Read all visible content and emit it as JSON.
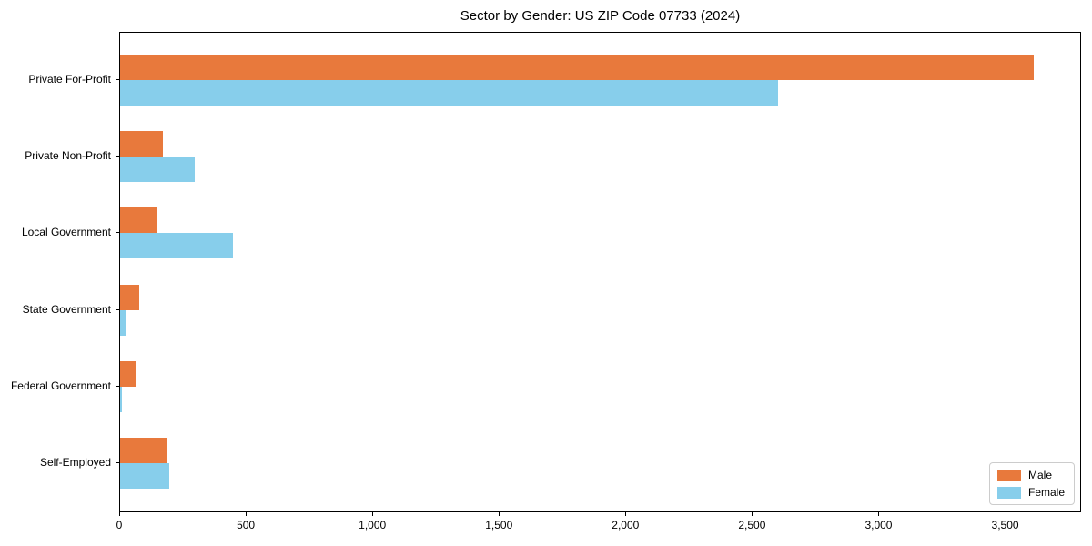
{
  "title": "Sector by Gender: US ZIP Code 07733 (2024)",
  "colors": {
    "male_bar": "#e8793c",
    "female_bar": "#87ceeb",
    "axis": "#000000",
    "legend_border": "#cccccc",
    "background": "#ffffff"
  },
  "legend": {
    "position": "lower right",
    "items": [
      {
        "label": "Male",
        "color": "#e8793c"
      },
      {
        "label": "Female",
        "color": "#87ceeb"
      }
    ]
  },
  "chart_data": {
    "type": "bar",
    "orientation": "horizontal",
    "title": "Sector by Gender: US ZIP Code 07733 (2024)",
    "categories": [
      "Private For-Profit",
      "Private Non-Profit",
      "Local Government",
      "State Government",
      "Federal Government",
      "Self-Employed"
    ],
    "series": [
      {
        "name": "Male",
        "color": "#e8793c",
        "values": [
          3610,
          170,
          145,
          75,
          60,
          185
        ]
      },
      {
        "name": "Female",
        "color": "#87ceeb",
        "values": [
          2600,
          295,
          445,
          25,
          6,
          195
        ]
      }
    ],
    "xlabel": "",
    "ylabel": "",
    "xlim": [
      0,
      3800
    ],
    "xticks": {
      "values": [
        0,
        500,
        1000,
        1500,
        2000,
        2500,
        3000,
        3500
      ],
      "labels": [
        "0",
        "500",
        "1,000",
        "1,500",
        "2,000",
        "2,500",
        "3,000",
        "3,500"
      ]
    },
    "grid": false,
    "legend_position": "lower right"
  }
}
